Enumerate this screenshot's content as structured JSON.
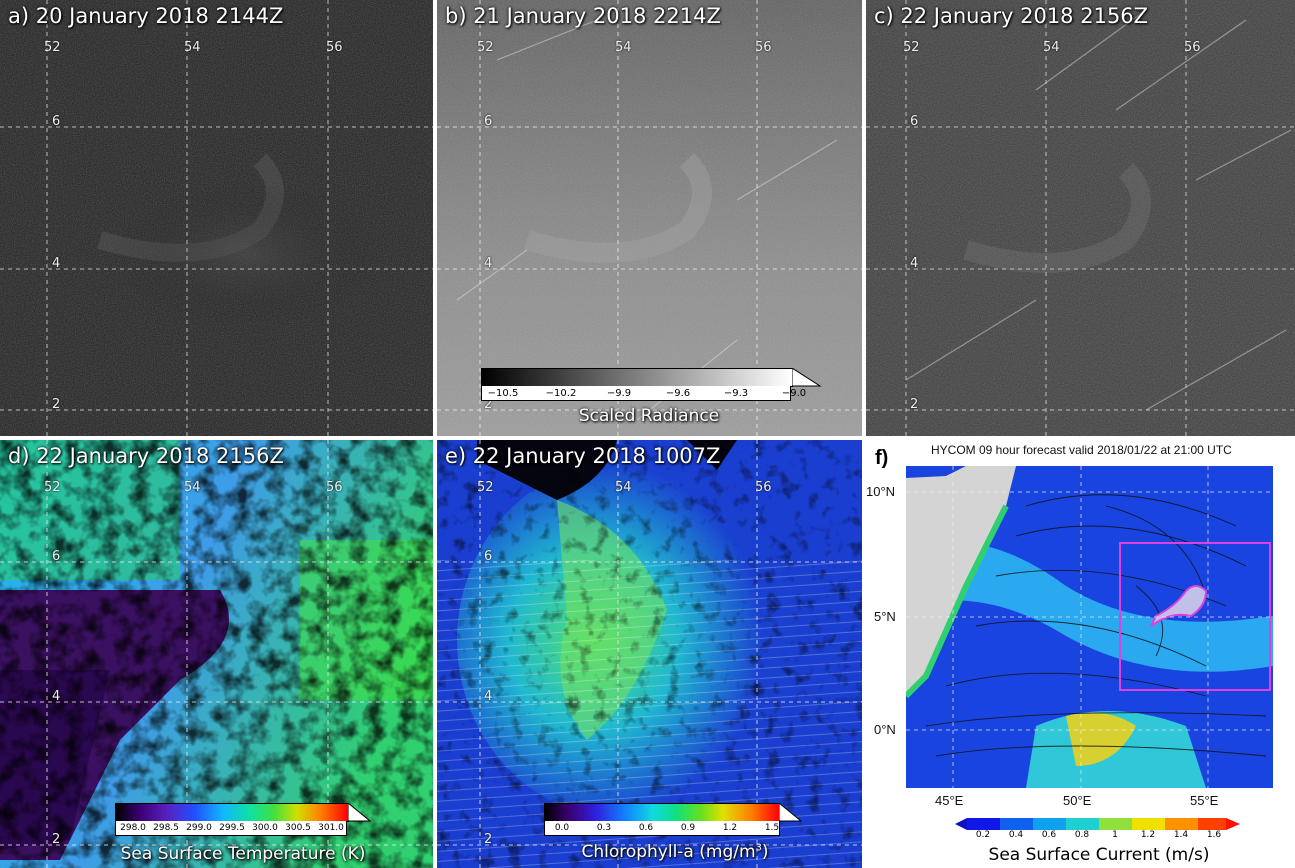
{
  "panels": {
    "a": {
      "label": "a)  20 January 2018 2144Z",
      "lon_ticks": [
        "52",
        "54",
        "56"
      ],
      "lat_ticks": [
        "6",
        "4",
        "2"
      ]
    },
    "b": {
      "label": "b)  21 January 2018 2214Z",
      "lon_ticks": [
        "52",
        "54",
        "56"
      ],
      "lat_ticks": [
        "6",
        "4",
        "2"
      ]
    },
    "c": {
      "label": "c)  22 January 2018 2156Z",
      "lon_ticks": [
        "52",
        "54",
        "56"
      ],
      "lat_ticks": [
        "6",
        "4",
        "2"
      ]
    },
    "d": {
      "label": "d)  22 January 2018 2156Z",
      "lon_ticks": [
        "52",
        "54",
        "56"
      ],
      "lat_ticks": [
        "6",
        "4",
        "2"
      ]
    },
    "e": {
      "label": "e)  22 January 2018 1007Z",
      "lon_ticks": [
        "52",
        "54",
        "56"
      ],
      "lat_ticks": [
        "6",
        "4",
        "2"
      ]
    }
  },
  "colorbars": {
    "radiance": {
      "ticks": [
        "−10.5",
        "−10.2",
        "−9.9",
        "−9.6",
        "−9.3",
        "−9.0"
      ],
      "title": "Scaled Radiance"
    },
    "sst": {
      "ticks": [
        "298.0",
        "298.5",
        "299.0",
        "299.5",
        "300.0",
        "300.5",
        "301.0"
      ],
      "title": "Sea Surface Temperature (K)"
    },
    "chl": {
      "ticks": [
        "0.0",
        "0.3",
        "0.6",
        "0.9",
        "1.2",
        "1.5"
      ],
      "title_main": "Chlorophyll-a (mg/m",
      "title_sup": "3",
      "title_end": ")"
    }
  },
  "hycom": {
    "panel_label": "f)",
    "title": "HYCOM 09 hour forecast valid 2018/01/22 at 21:00 UTC",
    "lat_labels": [
      "10°N",
      "5°N",
      "0°N"
    ],
    "lon_labels": [
      "45°E",
      "50°E",
      "55°E"
    ],
    "cbar_ticks": [
      "0.2",
      "0.4",
      "0.6",
      "0.8",
      "1",
      "1.2",
      "1.4",
      "1.6"
    ],
    "cbar_title": "Sea Surface Current (m/s)",
    "box_color": "#e040e0"
  }
}
